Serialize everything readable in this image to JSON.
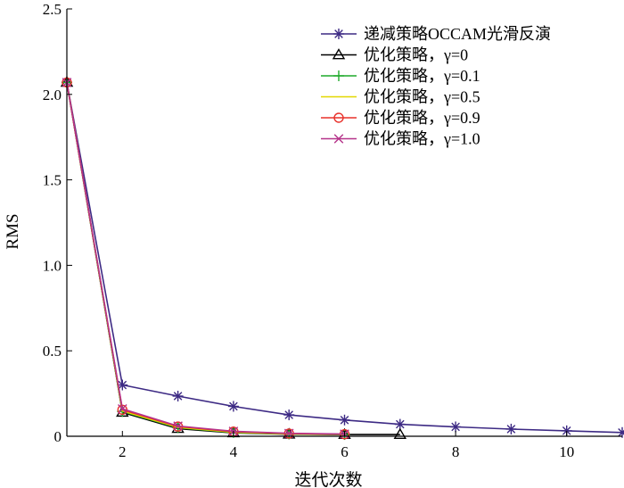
{
  "chart_data": {
    "type": "line",
    "title": "",
    "xlabel": "迭代次数",
    "ylabel": "RMS",
    "xlim": [
      1,
      11
    ],
    "ylim": [
      0,
      2.5
    ],
    "xticks": [
      2,
      4,
      6,
      8,
      10
    ],
    "yticks": [
      0,
      0.5,
      1.0,
      1.5,
      2.0,
      2.5
    ],
    "ytick_labels": [
      "0",
      "0.5",
      "1.0",
      "1.5",
      "2.0",
      "2.5"
    ],
    "grid": false,
    "legend_position": "top-right",
    "series": [
      {
        "name": "递减策略OCCAM光滑反演",
        "color": "#3d2a84",
        "marker": "asterisk",
        "x": [
          1,
          2,
          3,
          4,
          5,
          6,
          7,
          8,
          9,
          10,
          11
        ],
        "y": [
          2.07,
          0.3,
          0.235,
          0.175,
          0.125,
          0.095,
          0.07,
          0.055,
          0.042,
          0.032,
          0.022
        ]
      },
      {
        "name": "优化策略，γ=0",
        "color": "#000000",
        "marker": "triangle",
        "x": [
          1,
          2,
          3,
          4,
          5,
          6,
          7
        ],
        "y": [
          2.07,
          0.14,
          0.045,
          0.02,
          0.012,
          0.01,
          0.01
        ]
      },
      {
        "name": "优化策略，γ=0.1",
        "color": "#1faa2a",
        "marker": "plus",
        "x": [
          1,
          2,
          3,
          4,
          5,
          6
        ],
        "y": [
          2.07,
          0.145,
          0.05,
          0.022,
          0.013,
          0.01
        ]
      },
      {
        "name": "优化策略，γ=0.5",
        "color": "#e3d800",
        "marker": "none",
        "x": [
          1,
          2,
          3,
          4,
          5,
          6
        ],
        "y": [
          2.07,
          0.148,
          0.052,
          0.024,
          0.014,
          0.011
        ]
      },
      {
        "name": "优化策略，γ=0.9",
        "color": "#e8302a",
        "marker": "circle",
        "x": [
          1,
          2,
          3,
          4,
          5,
          6
        ],
        "y": [
          2.07,
          0.155,
          0.057,
          0.027,
          0.016,
          0.012
        ]
      },
      {
        "name": "优化策略，γ=1.0",
        "color": "#b5338a",
        "marker": "x",
        "x": [
          1,
          2,
          3,
          4,
          5,
          6
        ],
        "y": [
          2.07,
          0.16,
          0.06,
          0.029,
          0.017,
          0.013
        ]
      }
    ]
  }
}
